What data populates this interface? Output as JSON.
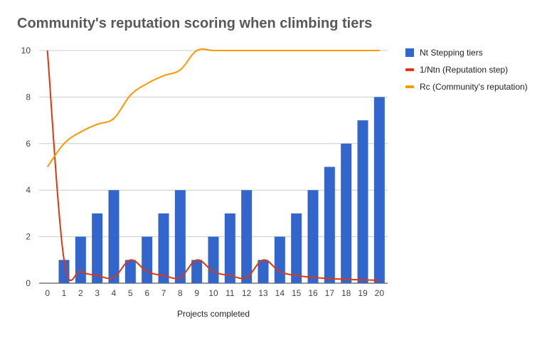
{
  "chart_data": {
    "type": "bar",
    "title": "Community's reputation scoring when climbing tiers",
    "xlabel": "Projects completed",
    "ylabel": "",
    "ylim": [
      0,
      10
    ],
    "yticks": [
      "0",
      "2",
      "4",
      "6",
      "8",
      "10"
    ],
    "categories": [
      "0",
      "1",
      "2",
      "3",
      "4",
      "5",
      "6",
      "7",
      "8",
      "9",
      "10",
      "11",
      "12",
      "13",
      "14",
      "15",
      "16",
      "17",
      "18",
      "19",
      "20"
    ],
    "series": [
      {
        "name": "Nt Stepping tiers",
        "kind": "bar",
        "color": "#3366cc",
        "values": [
          0,
          1,
          2,
          3,
          4,
          1,
          2,
          3,
          4,
          1,
          2,
          3,
          4,
          1,
          2,
          3,
          4,
          5,
          6,
          7,
          8
        ]
      },
      {
        "name": "1/Ntn (Reputation step)",
        "kind": "line",
        "color": "#dc3912",
        "values": [
          10,
          1,
          0.5,
          0.333,
          0.25,
          1,
          0.5,
          0.333,
          0.25,
          1,
          0.5,
          0.333,
          0.25,
          1,
          0.5,
          0.333,
          0.25,
          0.2,
          0.167,
          0.143,
          0.125
        ]
      },
      {
        "name": "Rc (Community's reputation)",
        "kind": "line",
        "color": "#ff9900",
        "values": [
          5,
          6,
          6.5,
          6.83,
          7.08,
          8.08,
          8.58,
          8.92,
          9.17,
          10,
          10,
          10,
          10,
          10,
          10,
          10,
          10,
          10,
          10,
          10,
          10
        ]
      }
    ],
    "legend_position": "right"
  }
}
